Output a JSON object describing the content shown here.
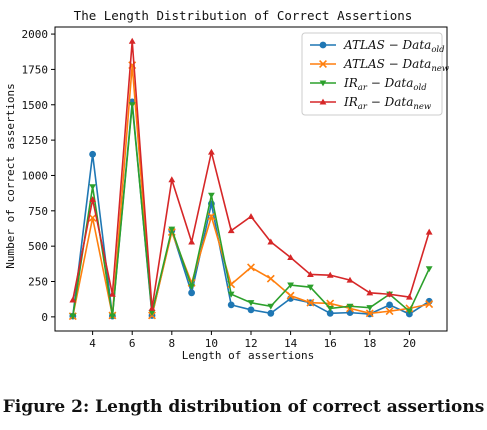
{
  "chart_data": {
    "type": "line",
    "title": "The Length Distribution of Correct Assertions",
    "xlabel": "Length of assertions",
    "ylabel": "Number of correct assertions",
    "xlim": [
      2.1,
      21.9
    ],
    "ylim": [
      -100,
      2050
    ],
    "xticks": [
      4,
      6,
      8,
      10,
      12,
      14,
      16,
      18,
      20
    ],
    "yticks": [
      0,
      250,
      500,
      750,
      1000,
      1250,
      1500,
      1750,
      2000
    ],
    "grid": false,
    "legend_position": "top-right",
    "x": [
      3,
      4,
      5,
      6,
      7,
      8,
      9,
      10,
      11,
      12,
      13,
      14,
      15,
      16,
      17,
      18,
      19,
      20,
      21
    ],
    "series": [
      {
        "name": "ATLAS − Data_old",
        "legend": {
          "main": "ATLAS − Data",
          "sub": "old"
        },
        "color": "#1f77b4",
        "marker": "circle",
        "values": [
          5,
          1150,
          5,
          1520,
          10,
          610,
          170,
          800,
          85,
          50,
          25,
          130,
          100,
          25,
          30,
          20,
          85,
          20,
          110
        ]
      },
      {
        "name": "ATLAS − Data_new",
        "legend": {
          "main": "ATLAS − Data",
          "sub": "new"
        },
        "color": "#ff7f0e",
        "marker": "x",
        "values": [
          5,
          700,
          10,
          1780,
          10,
          600,
          240,
          710,
          230,
          350,
          270,
          150,
          100,
          95,
          60,
          25,
          40,
          60,
          90
        ]
      },
      {
        "name": "IR_ar − Data_old",
        "legend": {
          "main": "IR",
          "main_sub": "ar",
          "rest": " − Data",
          "sub": "old"
        },
        "color": "#2ca02c",
        "marker": "triangle-down",
        "values": [
          5,
          920,
          5,
          1500,
          30,
          620,
          215,
          860,
          160,
          100,
          75,
          225,
          210,
          60,
          75,
          65,
          160,
          40,
          340
        ]
      },
      {
        "name": "IR_ar − Data_new",
        "legend": {
          "main": "IR",
          "main_sub": "ar",
          "rest": " − Data",
          "sub": "new"
        },
        "color": "#d62728",
        "marker": "triangle-up",
        "values": [
          120,
          830,
          160,
          1950,
          60,
          970,
          530,
          1165,
          610,
          710,
          530,
          420,
          300,
          295,
          260,
          170,
          160,
          140,
          600
        ]
      }
    ]
  },
  "caption": "Figure 2: Length distribution of correct assertions"
}
